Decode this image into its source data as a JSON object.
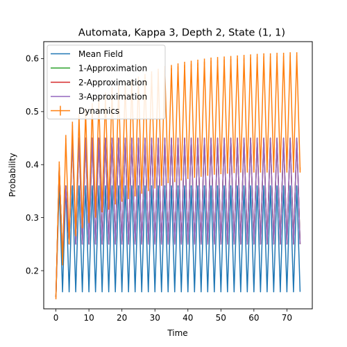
{
  "chart_data": {
    "type": "line",
    "title": "Automata, Kappa 3, Depth 2, State (1, 1)",
    "xlabel": "Time",
    "ylabel": "Probability",
    "xlim": [
      -3.7,
      77.7
    ],
    "ylim": [
      0.128,
      0.632
    ],
    "xticks": [
      0,
      10,
      20,
      30,
      40,
      50,
      60,
      70
    ],
    "yticks": [
      0.2,
      0.3,
      0.4,
      0.5,
      0.6
    ],
    "legend_position": "top-left",
    "series": [
      {
        "name": "Mean Field",
        "color": "#1f77b4",
        "x": [
          0,
          1,
          2,
          3,
          4,
          5,
          6,
          7,
          8,
          9,
          10,
          11,
          12,
          13,
          14,
          15,
          16,
          17,
          18,
          19,
          20,
          21,
          22,
          23,
          24,
          25,
          26,
          27,
          28,
          29,
          30,
          31,
          32,
          33,
          34,
          35,
          36,
          37,
          38,
          39,
          40,
          41,
          42,
          43,
          44,
          45,
          46,
          47,
          48,
          49,
          50,
          51,
          52,
          53,
          54,
          55,
          56,
          57,
          58,
          59,
          60,
          61,
          62,
          63,
          64,
          65,
          66,
          67,
          68,
          69,
          70,
          71,
          72,
          73,
          74
        ],
        "y": [
          0.15,
          0.36,
          0.16,
          0.36,
          0.16,
          0.36,
          0.16,
          0.36,
          0.16,
          0.36,
          0.16,
          0.36,
          0.16,
          0.36,
          0.16,
          0.36,
          0.16,
          0.36,
          0.16,
          0.36,
          0.16,
          0.36,
          0.16,
          0.36,
          0.16,
          0.36,
          0.16,
          0.36,
          0.16,
          0.36,
          0.16,
          0.36,
          0.16,
          0.36,
          0.16,
          0.36,
          0.16,
          0.36,
          0.16,
          0.36,
          0.16,
          0.36,
          0.16,
          0.36,
          0.16,
          0.36,
          0.16,
          0.36,
          0.16,
          0.36,
          0.16,
          0.36,
          0.16,
          0.36,
          0.16,
          0.36,
          0.16,
          0.36,
          0.16,
          0.36,
          0.16,
          0.36,
          0.16,
          0.36,
          0.16,
          0.36,
          0.16,
          0.36,
          0.16,
          0.36,
          0.16,
          0.36,
          0.16,
          0.36,
          0.16
        ]
      },
      {
        "name": "1-Approximation",
        "color": "#2ca02c",
        "x": [
          0,
          1,
          2,
          3,
          4,
          5,
          6,
          7,
          8,
          9,
          10,
          11,
          12,
          13,
          14,
          15,
          16,
          17,
          18,
          19,
          20,
          21,
          22,
          23,
          24,
          25,
          26,
          27,
          28,
          29,
          30,
          31,
          32,
          33,
          34,
          35,
          36,
          37,
          38,
          39,
          40,
          41,
          42,
          43,
          44,
          45,
          46,
          47,
          48,
          49,
          50,
          51,
          52,
          53,
          54,
          55,
          56,
          57,
          58,
          59,
          60,
          61,
          62,
          63,
          64,
          65,
          66,
          67,
          68,
          69,
          70,
          71,
          72,
          73,
          74
        ],
        "y": [
          0.15,
          0.395,
          0.225,
          0.36,
          0.25,
          0.45,
          0.25,
          0.45,
          0.25,
          0.45,
          0.25,
          0.45,
          0.25,
          0.45,
          0.25,
          0.45,
          0.25,
          0.45,
          0.25,
          0.45,
          0.25,
          0.45,
          0.25,
          0.45,
          0.25,
          0.45,
          0.25,
          0.45,
          0.25,
          0.45,
          0.25,
          0.45,
          0.25,
          0.45,
          0.25,
          0.45,
          0.25,
          0.45,
          0.25,
          0.45,
          0.25,
          0.45,
          0.25,
          0.45,
          0.25,
          0.45,
          0.25,
          0.45,
          0.25,
          0.45,
          0.25,
          0.45,
          0.25,
          0.45,
          0.25,
          0.45,
          0.25,
          0.45,
          0.25,
          0.45,
          0.25,
          0.45,
          0.25,
          0.45,
          0.25,
          0.45,
          0.25,
          0.45,
          0.25,
          0.45,
          0.25,
          0.45,
          0.25,
          0.45,
          0.25
        ]
      },
      {
        "name": "2-Approximation",
        "color": "#d62728",
        "x": [
          0,
          1,
          2,
          3,
          4,
          5,
          6,
          7,
          8,
          9,
          10,
          11,
          12,
          13,
          14,
          15,
          16,
          17,
          18,
          19,
          20,
          21,
          22,
          23,
          24,
          25,
          26,
          27,
          28,
          29,
          30,
          31,
          32,
          33,
          34,
          35,
          36,
          37,
          38,
          39,
          40,
          41,
          42,
          43,
          44,
          45,
          46,
          47,
          48,
          49,
          50,
          51,
          52,
          53,
          54,
          55,
          56,
          57,
          58,
          59,
          60,
          61,
          62,
          63,
          64,
          65,
          66,
          67,
          68,
          69,
          70,
          71,
          72,
          73,
          74
        ],
        "y": [
          0.15,
          0.395,
          0.225,
          0.36,
          0.25,
          0.45,
          0.25,
          0.45,
          0.25,
          0.45,
          0.25,
          0.45,
          0.25,
          0.45,
          0.25,
          0.45,
          0.25,
          0.45,
          0.25,
          0.45,
          0.25,
          0.45,
          0.25,
          0.45,
          0.25,
          0.45,
          0.25,
          0.45,
          0.25,
          0.45,
          0.25,
          0.45,
          0.25,
          0.45,
          0.25,
          0.45,
          0.25,
          0.45,
          0.25,
          0.45,
          0.25,
          0.45,
          0.25,
          0.45,
          0.25,
          0.45,
          0.25,
          0.45,
          0.25,
          0.45,
          0.25,
          0.45,
          0.25,
          0.45,
          0.25,
          0.45,
          0.25,
          0.45,
          0.25,
          0.45,
          0.25,
          0.45,
          0.25,
          0.45,
          0.25,
          0.45,
          0.25,
          0.45,
          0.25,
          0.45,
          0.25,
          0.45,
          0.25,
          0.45,
          0.25
        ]
      },
      {
        "name": "3-Approximation",
        "color": "#9467bd",
        "x": [
          0,
          1,
          2,
          3,
          4,
          5,
          6,
          7,
          8,
          9,
          10,
          11,
          12,
          13,
          14,
          15,
          16,
          17,
          18,
          19,
          20,
          21,
          22,
          23,
          24,
          25,
          26,
          27,
          28,
          29,
          30,
          31,
          32,
          33,
          34,
          35,
          36,
          37,
          38,
          39,
          40,
          41,
          42,
          43,
          44,
          45,
          46,
          47,
          48,
          49,
          50,
          51,
          52,
          53,
          54,
          55,
          56,
          57,
          58,
          59,
          60,
          61,
          62,
          63,
          64,
          65,
          66,
          67,
          68,
          69,
          70,
          71,
          72,
          73,
          74
        ],
        "y": [
          0.15,
          0.395,
          0.225,
          0.36,
          0.25,
          0.45,
          0.25,
          0.45,
          0.25,
          0.45,
          0.25,
          0.45,
          0.25,
          0.45,
          0.25,
          0.45,
          0.25,
          0.45,
          0.25,
          0.45,
          0.25,
          0.45,
          0.25,
          0.45,
          0.25,
          0.45,
          0.25,
          0.45,
          0.25,
          0.45,
          0.25,
          0.45,
          0.25,
          0.45,
          0.25,
          0.45,
          0.25,
          0.45,
          0.25,
          0.45,
          0.25,
          0.45,
          0.25,
          0.45,
          0.25,
          0.45,
          0.25,
          0.45,
          0.25,
          0.45,
          0.25,
          0.45,
          0.25,
          0.45,
          0.25,
          0.45,
          0.25,
          0.45,
          0.25,
          0.45,
          0.25,
          0.45,
          0.25,
          0.45,
          0.25,
          0.45,
          0.25,
          0.45,
          0.25,
          0.45,
          0.25,
          0.45,
          0.25,
          0.45,
          0.25
        ]
      },
      {
        "name": "Dynamics",
        "color": "#ff7f0e",
        "error_bars": true,
        "x": [
          0,
          1,
          2,
          3,
          4,
          5,
          6,
          7,
          8,
          9,
          10,
          11,
          12,
          13,
          14,
          15,
          16,
          17,
          18,
          19,
          20,
          21,
          22,
          23,
          24,
          25,
          26,
          27,
          28,
          29,
          30,
          31,
          32,
          33,
          34,
          35,
          36,
          37,
          38,
          39,
          40,
          41,
          42,
          43,
          44,
          45,
          46,
          47,
          48,
          49,
          50,
          51,
          52,
          53,
          54,
          55,
          56,
          57,
          58,
          59,
          60,
          61,
          62,
          63,
          64,
          65,
          66,
          67,
          68,
          69,
          70,
          71,
          72,
          73,
          74
        ],
        "y": [
          0.15,
          0.4,
          0.215,
          0.45,
          0.255,
          0.475,
          0.27,
          0.49,
          0.285,
          0.5,
          0.295,
          0.51,
          0.305,
          0.52,
          0.315,
          0.53,
          0.32,
          0.54,
          0.33,
          0.545,
          0.335,
          0.55,
          0.34,
          0.555,
          0.345,
          0.56,
          0.35,
          0.565,
          0.355,
          0.57,
          0.36,
          0.575,
          0.365,
          0.58,
          0.37,
          0.582,
          0.372,
          0.585,
          0.375,
          0.588,
          0.378,
          0.59,
          0.38,
          0.592,
          0.382,
          0.594,
          0.384,
          0.596,
          0.386,
          0.597,
          0.387,
          0.598,
          0.388,
          0.599,
          0.389,
          0.6,
          0.39,
          0.601,
          0.39,
          0.602,
          0.39,
          0.603,
          0.39,
          0.604,
          0.39,
          0.604,
          0.39,
          0.605,
          0.39,
          0.605,
          0.39,
          0.606,
          0.39,
          0.606,
          0.39
        ],
        "yerr": [
          0.004,
          0.006,
          0.005,
          0.006,
          0.005,
          0.006,
          0.005,
          0.006,
          0.005,
          0.006,
          0.005,
          0.006,
          0.005,
          0.006,
          0.005,
          0.006,
          0.005,
          0.006,
          0.005,
          0.006,
          0.005,
          0.006,
          0.005,
          0.006,
          0.005,
          0.006,
          0.005,
          0.006,
          0.005,
          0.006,
          0.005,
          0.006,
          0.005,
          0.006,
          0.005,
          0.006,
          0.005,
          0.006,
          0.005,
          0.006,
          0.005,
          0.006,
          0.005,
          0.006,
          0.005,
          0.006,
          0.005,
          0.006,
          0.005,
          0.006,
          0.005,
          0.006,
          0.005,
          0.006,
          0.005,
          0.006,
          0.005,
          0.006,
          0.005,
          0.006,
          0.005,
          0.006,
          0.005,
          0.006,
          0.005,
          0.006,
          0.005,
          0.006,
          0.005,
          0.006,
          0.005,
          0.006,
          0.005,
          0.006,
          0.005
        ]
      }
    ]
  }
}
